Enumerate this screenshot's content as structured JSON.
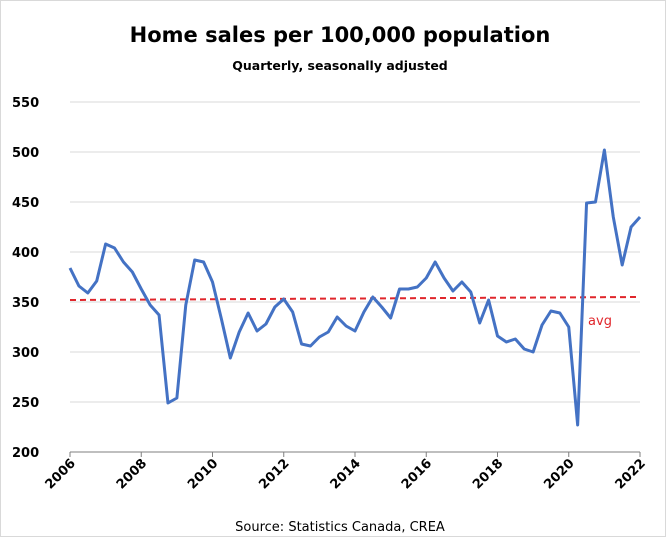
{
  "chart_data": {
    "type": "line",
    "title": "Home sales per 100,000 population",
    "subtitle": "Quarterly, seasonally adjusted",
    "source": "Source: Statistics Canada, CREA",
    "x": [
      2006,
      2006.25,
      2006.5,
      2006.75,
      2007,
      2007.25,
      2007.5,
      2007.75,
      2008,
      2008.25,
      2008.5,
      2008.75,
      2009,
      2009.25,
      2009.5,
      2009.75,
      2010,
      2010.25,
      2010.5,
      2010.75,
      2011,
      2011.25,
      2011.5,
      2011.75,
      2012,
      2012.25,
      2012.5,
      2012.75,
      2013,
      2013.25,
      2013.5,
      2013.75,
      2014,
      2014.25,
      2014.5,
      2014.75,
      2015,
      2015.25,
      2015.5,
      2015.75,
      2016,
      2016.25,
      2016.5,
      2016.75,
      2017,
      2017.25,
      2017.5,
      2017.75,
      2018,
      2018.25,
      2018.5,
      2018.75,
      2019,
      2019.25,
      2019.5,
      2019.75,
      2020,
      2020.25,
      2020.5,
      2020.75,
      2021,
      2021.25,
      2021.5,
      2021.75,
      2022
    ],
    "series": [
      {
        "name": "Home sales",
        "color": "#4472c4",
        "values": [
          384,
          366,
          359,
          371,
          408,
          404,
          390,
          380,
          363,
          347,
          337,
          249,
          254,
          347,
          392,
          390,
          370,
          333,
          294,
          320,
          339,
          321,
          328,
          345,
          353,
          340,
          308,
          306,
          315,
          320,
          335,
          326,
          321,
          340,
          355,
          345,
          334,
          363,
          363,
          365,
          374,
          390,
          374,
          361,
          370,
          360,
          329,
          352,
          316,
          310,
          313,
          303,
          300,
          327,
          341,
          339,
          325,
          227,
          449,
          450,
          502,
          435,
          387,
          425,
          435
        ]
      }
    ],
    "average": {
      "label": "avg",
      "color": "#e0262b",
      "values": [
        352,
        355
      ]
    },
    "xlim": [
      2006,
      2022
    ],
    "xticks": [
      2006,
      2008,
      2010,
      2012,
      2014,
      2016,
      2018,
      2020,
      2022
    ],
    "ylim": [
      200,
      550
    ],
    "yticks": [
      200,
      250,
      300,
      350,
      400,
      450,
      500,
      550
    ],
    "grid": true
  }
}
